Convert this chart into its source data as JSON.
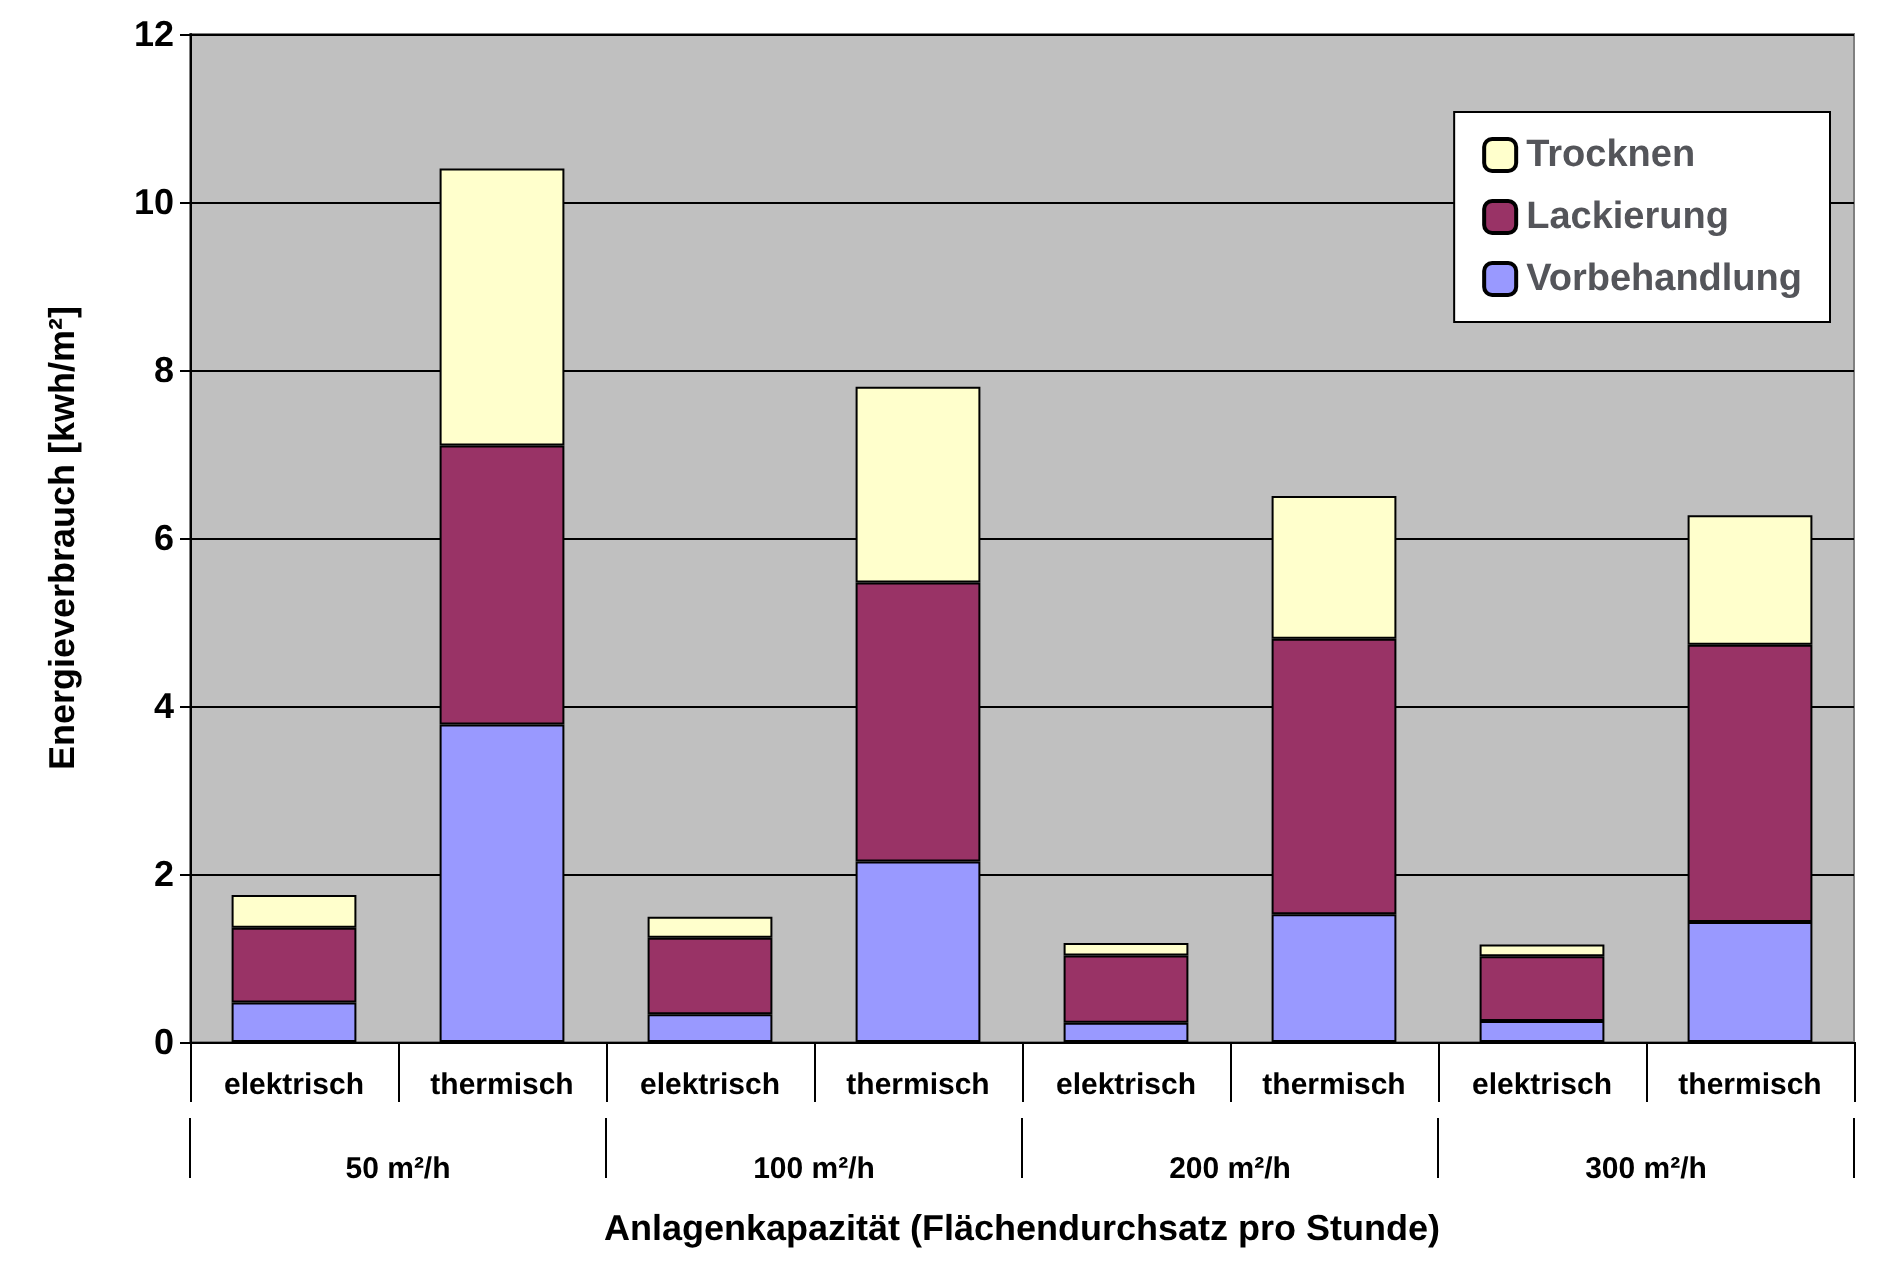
{
  "chart_data": {
    "type": "bar",
    "stacked": true,
    "xlabel": "Anlagenkapazität (Flächendurchsatz pro Stunde)",
    "ylabel": "Energieverbrauch [kwh/m²]",
    "categories": [
      "elektrisch",
      "thermisch",
      "elektrisch",
      "thermisch",
      "elektrisch",
      "thermisch",
      "elektrisch",
      "thermisch"
    ],
    "annotations": [
      "50 m²/h",
      "100 m²/h",
      "200 m²/h",
      "300 m²/h"
    ],
    "series": [
      {
        "name": "Vorbehandlung",
        "color": "#9999ff",
        "values": [
          0.47,
          3.78,
          0.33,
          2.15,
          0.23,
          1.52,
          0.25,
          1.43
        ]
      },
      {
        "name": "Lackierung",
        "color": "#993366",
        "values": [
          0.89,
          3.32,
          0.91,
          3.32,
          0.8,
          3.28,
          0.77,
          3.3
        ]
      },
      {
        "name": "Trocknen",
        "color": "#ffffcc",
        "values": [
          0.39,
          3.3,
          0.25,
          2.33,
          0.15,
          1.7,
          0.14,
          1.54
        ]
      }
    ],
    "ylim": [
      0,
      12
    ],
    "yticks": [
      0,
      2,
      4,
      6,
      8,
      10,
      12
    ],
    "grid": "y",
    "legend": "top right"
  }
}
